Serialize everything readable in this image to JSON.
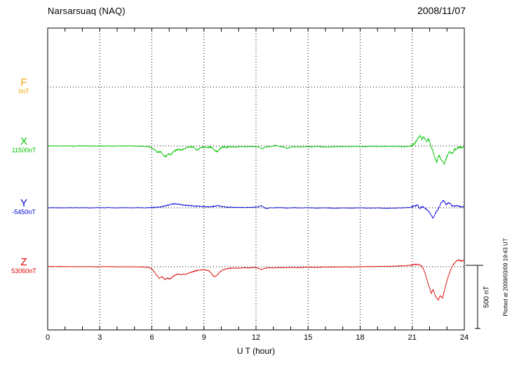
{
  "chart_data": {
    "type": "line",
    "title": "Narsarsuaq (NAQ)",
    "date": "2008/11/07",
    "xlabel": "U T (hour)",
    "plotted_at": "Plotted at 2009/03/09 19:43 UT",
    "x_range": [
      0,
      24
    ],
    "x_tick_hours": [
      0,
      3,
      6,
      9,
      12,
      15,
      18,
      21,
      24
    ],
    "grid_hours": [
      3,
      6,
      9,
      12,
      15,
      18,
      21
    ],
    "scale_bar": {
      "label": "500 nT",
      "nT": 500
    },
    "points_units": [
      "UT_hour",
      "nT_offset_from_base_value"
    ],
    "series": [
      {
        "name": "F",
        "base_label": "0nT",
        "base_value_nT": 0,
        "color": "#f0a202",
        "quiet_noise_nT": 0,
        "points": []
      },
      {
        "name": "X",
        "base_label": "11500nT",
        "base_value_nT": 11500,
        "color": "#00c400",
        "quiet_noise_nT": 2.4,
        "points": [
          [
            0,
            2
          ],
          [
            0.3,
            0
          ],
          [
            0.6,
            1
          ],
          [
            0.9,
            -1
          ],
          [
            1.2,
            1
          ],
          [
            1.5,
            -1
          ],
          [
            1.8,
            2
          ],
          [
            2.1,
            0
          ],
          [
            2.4,
            1
          ],
          [
            2.7,
            -2
          ],
          [
            3,
            1
          ],
          [
            3.3,
            -1
          ],
          [
            3.6,
            0
          ],
          [
            3.9,
            -2
          ],
          [
            4.2,
            1
          ],
          [
            4.5,
            0
          ],
          [
            4.8,
            1
          ],
          [
            5.1,
            -1
          ],
          [
            5.4,
            -2
          ],
          [
            5.7,
            -4
          ],
          [
            5.9,
            -8
          ],
          [
            6.05,
            -16
          ],
          [
            6.2,
            -34
          ],
          [
            6.35,
            -52
          ],
          [
            6.5,
            -44
          ],
          [
            6.65,
            -72
          ],
          [
            6.8,
            -84
          ],
          [
            6.95,
            -62
          ],
          [
            7.1,
            -70
          ],
          [
            7.25,
            -44
          ],
          [
            7.4,
            -32
          ],
          [
            7.55,
            -28
          ],
          [
            7.7,
            -34
          ],
          [
            7.85,
            -24
          ],
          [
            8,
            -14
          ],
          [
            8.15,
            -8
          ],
          [
            8.3,
            -5
          ],
          [
            8.45,
            -16
          ],
          [
            8.6,
            -33
          ],
          [
            8.75,
            -16
          ],
          [
            8.9,
            -9
          ],
          [
            9.05,
            -7
          ],
          [
            9.2,
            -12
          ],
          [
            9.35,
            -8
          ],
          [
            9.5,
            -14
          ],
          [
            9.65,
            -38
          ],
          [
            9.8,
            -44
          ],
          [
            9.95,
            -16
          ],
          [
            10.1,
            -7
          ],
          [
            10.3,
            -10
          ],
          [
            10.5,
            -5
          ],
          [
            10.8,
            -9
          ],
          [
            11.1,
            -4
          ],
          [
            11.4,
            -7
          ],
          [
            11.7,
            -3
          ],
          [
            12,
            -6
          ],
          [
            12.2,
            -9
          ],
          [
            12.35,
            -24
          ],
          [
            12.5,
            -10
          ],
          [
            12.7,
            -5
          ],
          [
            12.9,
            -4
          ],
          [
            13.1,
            6
          ],
          [
            13.35,
            -4
          ],
          [
            13.6,
            -8
          ],
          [
            13.8,
            -20
          ],
          [
            14,
            -8
          ],
          [
            14.3,
            -5
          ],
          [
            14.6,
            -8
          ],
          [
            14.9,
            -4
          ],
          [
            15.2,
            -7
          ],
          [
            15.5,
            -3
          ],
          [
            15.8,
            -6
          ],
          [
            16.1,
            -9
          ],
          [
            16.4,
            -5
          ],
          [
            16.7,
            -7
          ],
          [
            17,
            -4
          ],
          [
            17.4,
            -6
          ],
          [
            17.8,
            -3
          ],
          [
            18.2,
            -5
          ],
          [
            18.6,
            -2
          ],
          [
            19,
            -4
          ],
          [
            19.4,
            -2
          ],
          [
            19.8,
            -4
          ],
          [
            20.2,
            -3
          ],
          [
            20.5,
            -6
          ],
          [
            20.8,
            -1
          ],
          [
            21,
            4
          ],
          [
            21.15,
            22
          ],
          [
            21.3,
            55
          ],
          [
            21.45,
            88
          ],
          [
            21.55,
            50
          ],
          [
            21.65,
            74
          ],
          [
            21.8,
            34
          ],
          [
            21.95,
            56
          ],
          [
            22.1,
            -12
          ],
          [
            22.25,
            -62
          ],
          [
            22.4,
            -128
          ],
          [
            22.55,
            -72
          ],
          [
            22.7,
            -112
          ],
          [
            22.85,
            -138
          ],
          [
            23,
            -82
          ],
          [
            23.15,
            -44
          ],
          [
            23.3,
            -62
          ],
          [
            23.45,
            -28
          ],
          [
            23.6,
            -16
          ],
          [
            23.8,
            -10
          ],
          [
            24,
            -12
          ]
        ]
      },
      {
        "name": "Y",
        "base_label": "-5450nT",
        "base_value_nT": -5450,
        "color": "#0000d8",
        "quiet_noise_nT": 1.6,
        "points": [
          [
            0,
            0
          ],
          [
            0.4,
            1
          ],
          [
            0.8,
            -1
          ],
          [
            1.2,
            1
          ],
          [
            1.6,
            0
          ],
          [
            2,
            1
          ],
          [
            2.4,
            -1
          ],
          [
            2.8,
            1
          ],
          [
            3.2,
            0
          ],
          [
            3.6,
            1
          ],
          [
            4,
            -1
          ],
          [
            4.4,
            1
          ],
          [
            4.8,
            0
          ],
          [
            5.2,
            1
          ],
          [
            5.6,
            0
          ],
          [
            6,
            2
          ],
          [
            6.3,
            4
          ],
          [
            6.6,
            9
          ],
          [
            6.9,
            19
          ],
          [
            7.1,
            27
          ],
          [
            7.3,
            31
          ],
          [
            7.5,
            28
          ],
          [
            7.7,
            24
          ],
          [
            7.9,
            21
          ],
          [
            8.1,
            18
          ],
          [
            8.4,
            15
          ],
          [
            8.7,
            12
          ],
          [
            9,
            10
          ],
          [
            9.3,
            8
          ],
          [
            9.6,
            11
          ],
          [
            9.8,
            17
          ],
          [
            10,
            10
          ],
          [
            10.3,
            6
          ],
          [
            10.6,
            4
          ],
          [
            11,
            3
          ],
          [
            11.4,
            2
          ],
          [
            11.8,
            4
          ],
          [
            12.1,
            6
          ],
          [
            12.3,
            17
          ],
          [
            12.45,
            4
          ],
          [
            12.6,
            -7
          ],
          [
            12.8,
            1
          ],
          [
            13,
            0
          ],
          [
            13.4,
            2
          ],
          [
            13.8,
            -2
          ],
          [
            14.2,
            1
          ],
          [
            14.6,
            -1
          ],
          [
            15,
            1
          ],
          [
            15.5,
            -2
          ],
          [
            16,
            0
          ],
          [
            16.5,
            -3
          ],
          [
            17,
            -1
          ],
          [
            17.5,
            -2
          ],
          [
            18,
            0
          ],
          [
            18.5,
            -2
          ],
          [
            19,
            -1
          ],
          [
            19.5,
            -4
          ],
          [
            20,
            -2
          ],
          [
            20.5,
            0
          ],
          [
            20.9,
            3
          ],
          [
            21.15,
            16
          ],
          [
            21.3,
            20
          ],
          [
            21.45,
            -4
          ],
          [
            21.6,
            9
          ],
          [
            21.75,
            -6
          ],
          [
            21.9,
            -18
          ],
          [
            22.05,
            -48
          ],
          [
            22.2,
            -84
          ],
          [
            22.35,
            -38
          ],
          [
            22.5,
            -12
          ],
          [
            22.65,
            38
          ],
          [
            22.8,
            58
          ],
          [
            22.95,
            26
          ],
          [
            23.1,
            44
          ],
          [
            23.25,
            20
          ],
          [
            23.4,
            13
          ],
          [
            23.6,
            18
          ],
          [
            23.8,
            8
          ],
          [
            24,
            12
          ]
        ]
      },
      {
        "name": "Z",
        "base_label": "53060nT",
        "base_value_nT": 53060,
        "color": "#d80000",
        "quiet_noise_nT": 1.4,
        "points": [
          [
            0,
            2
          ],
          [
            0.4,
            1
          ],
          [
            0.8,
            2
          ],
          [
            1.2,
            0
          ],
          [
            1.6,
            1
          ],
          [
            2,
            0
          ],
          [
            2.4,
            1
          ],
          [
            2.8,
            -1
          ],
          [
            3.2,
            0
          ],
          [
            3.6,
            1
          ],
          [
            4,
            -1
          ],
          [
            4.4,
            0
          ],
          [
            4.8,
            -1
          ],
          [
            5.2,
            -1
          ],
          [
            5.6,
            -3
          ],
          [
            5.85,
            -7
          ],
          [
            6,
            -18
          ],
          [
            6.15,
            -42
          ],
          [
            6.3,
            -72
          ],
          [
            6.45,
            -92
          ],
          [
            6.6,
            -80
          ],
          [
            6.75,
            -102
          ],
          [
            6.9,
            -88
          ],
          [
            7.05,
            -98
          ],
          [
            7.2,
            -78
          ],
          [
            7.35,
            -66
          ],
          [
            7.5,
            -58
          ],
          [
            7.65,
            -64
          ],
          [
            7.8,
            -56
          ],
          [
            7.95,
            -60
          ],
          [
            8.1,
            -52
          ],
          [
            8.25,
            -44
          ],
          [
            8.4,
            -38
          ],
          [
            8.55,
            -32
          ],
          [
            8.7,
            -28
          ],
          [
            8.9,
            -24
          ],
          [
            9.1,
            -26
          ],
          [
            9.3,
            -32
          ],
          [
            9.45,
            -58
          ],
          [
            9.6,
            -80
          ],
          [
            9.75,
            -66
          ],
          [
            9.9,
            -44
          ],
          [
            10.05,
            -28
          ],
          [
            10.2,
            -20
          ],
          [
            10.4,
            -14
          ],
          [
            10.7,
            -10
          ],
          [
            11,
            -12
          ],
          [
            11.3,
            -7
          ],
          [
            11.6,
            -10
          ],
          [
            11.9,
            -6
          ],
          [
            12.1,
            -10
          ],
          [
            12.3,
            -22
          ],
          [
            12.5,
            -12
          ],
          [
            12.7,
            -8
          ],
          [
            13,
            -10
          ],
          [
            13.3,
            -6
          ],
          [
            13.6,
            -8
          ],
          [
            14,
            -5
          ],
          [
            14.5,
            -7
          ],
          [
            15,
            -3
          ],
          [
            15.5,
            -5
          ],
          [
            16,
            -2
          ],
          [
            16.5,
            -3
          ],
          [
            17,
            -1
          ],
          [
            17.5,
            -2
          ],
          [
            18,
            0
          ],
          [
            18.5,
            1
          ],
          [
            19,
            2
          ],
          [
            19.5,
            3
          ],
          [
            20,
            5
          ],
          [
            20.4,
            7
          ],
          [
            20.8,
            11
          ],
          [
            21.1,
            16
          ],
          [
            21.3,
            20
          ],
          [
            21.5,
            9
          ],
          [
            21.65,
            -18
          ],
          [
            21.8,
            -78
          ],
          [
            21.95,
            -148
          ],
          [
            22.1,
            -215
          ],
          [
            22.2,
            -178
          ],
          [
            22.35,
            -238
          ],
          [
            22.5,
            -265
          ],
          [
            22.6,
            -228
          ],
          [
            22.75,
            -252
          ],
          [
            22.9,
            -158
          ],
          [
            23.05,
            -88
          ],
          [
            23.2,
            -28
          ],
          [
            23.35,
            14
          ],
          [
            23.5,
            38
          ],
          [
            23.65,
            54
          ],
          [
            23.8,
            46
          ],
          [
            24,
            50
          ]
        ]
      }
    ]
  }
}
